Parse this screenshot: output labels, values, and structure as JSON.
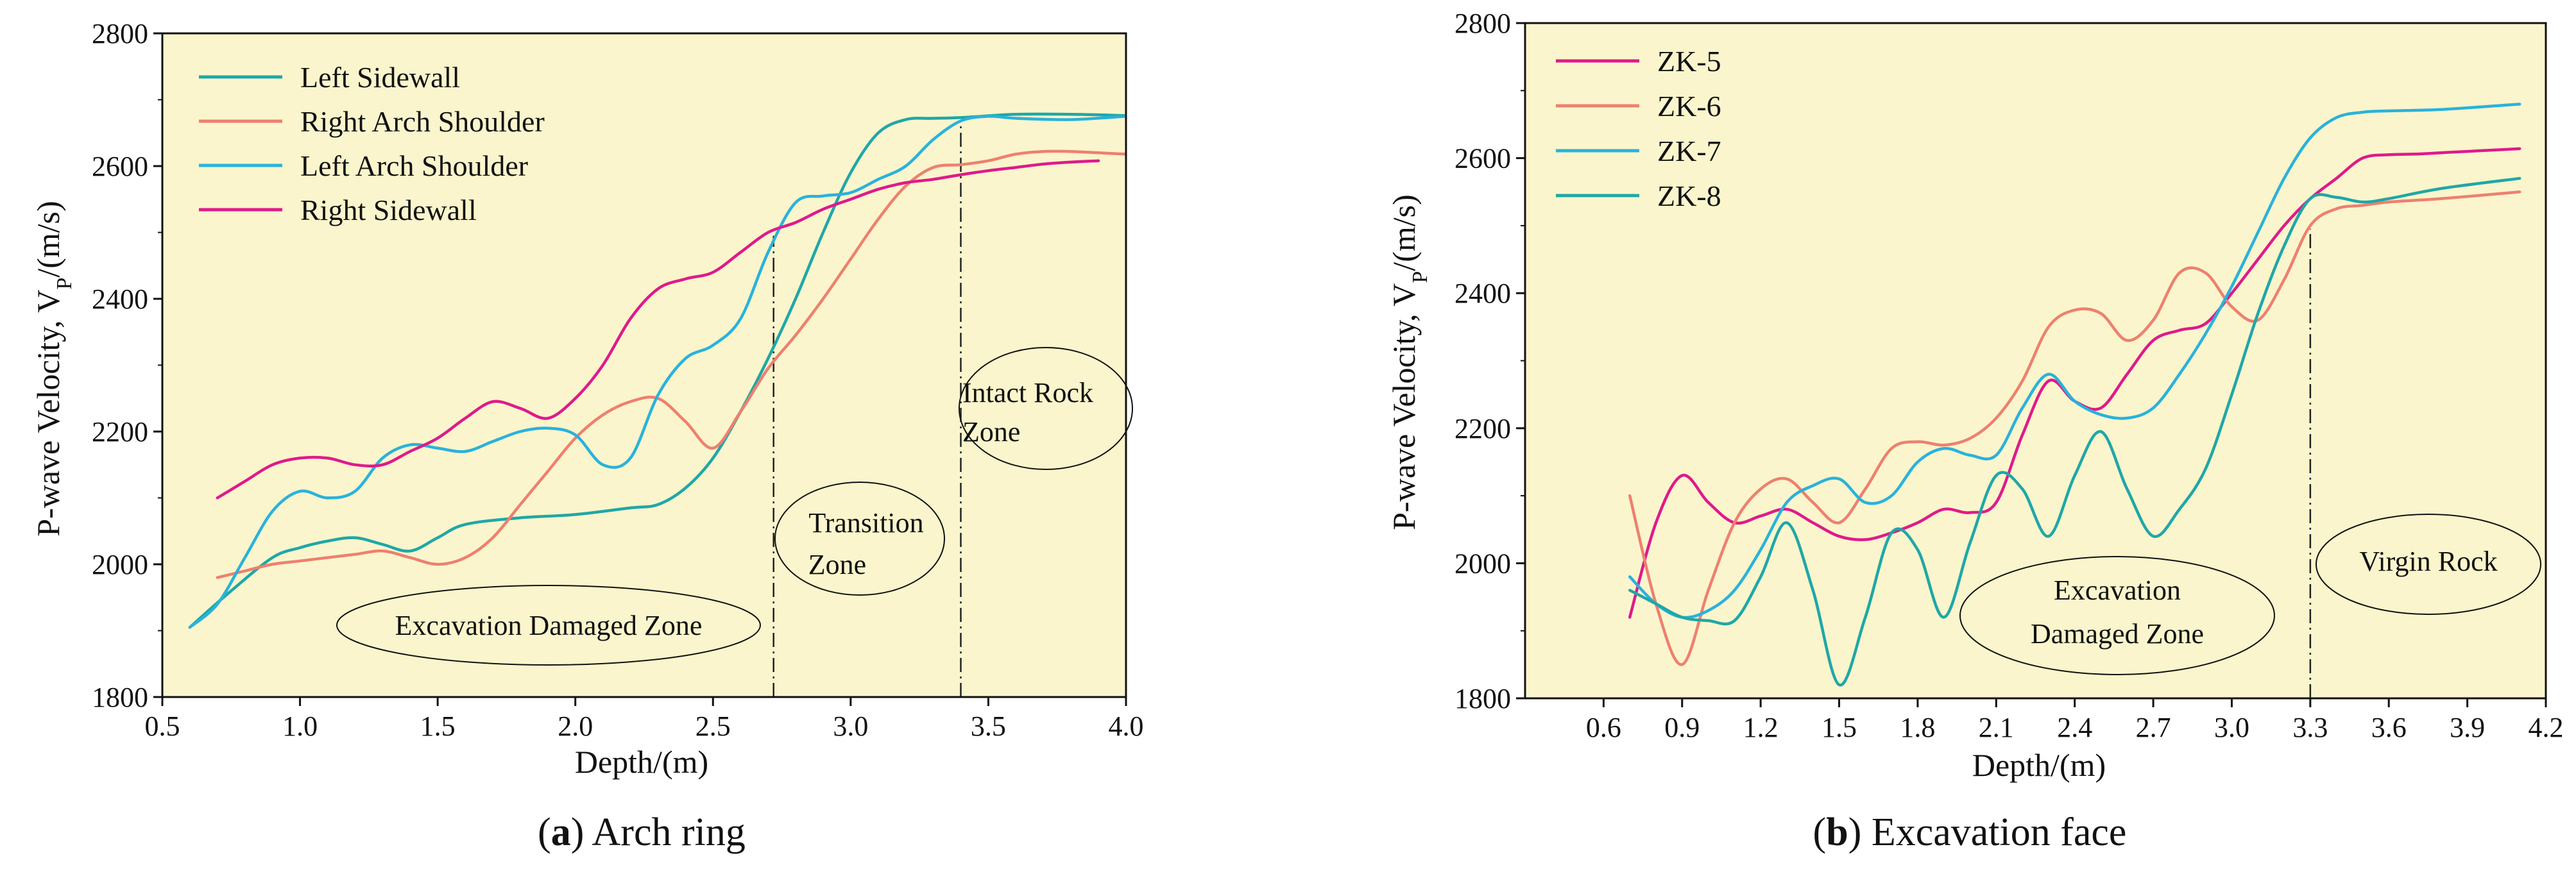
{
  "colors": {
    "plot_bg": "#faf5cc",
    "teal": "#1fa7a7",
    "salmon": "#ee8070",
    "sky": "#29b2dc",
    "magenta": "#df1a8c",
    "axis": "#111111"
  },
  "captions": {
    "a": {
      "letter": "a",
      "text": " Arch ring"
    },
    "b": {
      "letter": "b",
      "text": " Excavation face"
    }
  },
  "panels": [
    {
      "id": "a",
      "ylabel": "P-wave Velocity, V",
      "ylabel_sub": "P",
      "ylabel_unit": "/(m/s)",
      "xlabel": "Depth/(m)",
      "xlim": [
        0.5,
        4.0
      ],
      "ylim": [
        1800,
        2800
      ],
      "xticks": [
        "0.5",
        "1.0",
        "1.5",
        "2.0",
        "2.5",
        "3.0",
        "3.5",
        "4.0"
      ],
      "yticks": [
        "1800",
        "2000",
        "2200",
        "2400",
        "2600",
        "2800"
      ],
      "vlines": [
        2.72,
        3.4
      ],
      "annotations": [
        {
          "lines": [
            "Excavation Damaged Zone"
          ]
        },
        {
          "lines": [
            "Transition",
            "Zone"
          ]
        },
        {
          "lines": [
            "Intact Rock",
            "Zone"
          ]
        }
      ]
    },
    {
      "id": "b",
      "ylabel": "P-wave Velocity, V",
      "ylabel_sub": "P",
      "ylabel_unit": "/(m/s)",
      "xlabel": "Depth/(m)",
      "xlim": [
        0.3,
        4.2
      ],
      "ylim": [
        1800,
        2800
      ],
      "xticks": [
        "0.6",
        "0.9",
        "1.2",
        "1.5",
        "1.8",
        "2.1",
        "2.4",
        "2.7",
        "3.0",
        "3.3",
        "3.6",
        "3.9",
        "4.2"
      ],
      "yticks": [
        "1800",
        "2000",
        "2200",
        "2400",
        "2600",
        "2800"
      ],
      "vlines": [
        3.3
      ],
      "annotations": [
        {
          "lines": [
            "Excavation",
            "Damaged Zone"
          ]
        },
        {
          "lines": [
            "Virgin Rock"
          ]
        }
      ]
    }
  ],
  "chart_data": [
    {
      "type": "line",
      "title": "(a) Arch ring",
      "xlabel": "Depth/(m)",
      "ylabel": "P-wave Velocity, VP/(m/s)",
      "xlim": [
        0.5,
        4.0
      ],
      "ylim": [
        1800,
        2800
      ],
      "legend": "top-left",
      "series": [
        {
          "name": "Left Sidewall",
          "color_key": "teal",
          "x": [
            0.6,
            0.75,
            0.9,
            1.0,
            1.1,
            1.2,
            1.3,
            1.4,
            1.5,
            1.6,
            1.8,
            2.0,
            2.2,
            2.3,
            2.4,
            2.5,
            2.6,
            2.7,
            2.8,
            2.9,
            3.0,
            3.1,
            3.2,
            3.3,
            3.4,
            3.6,
            3.8,
            4.0
          ],
          "y": [
            1905,
            1960,
            2010,
            2025,
            2035,
            2040,
            2030,
            2020,
            2040,
            2060,
            2070,
            2075,
            2085,
            2090,
            2115,
            2160,
            2230,
            2310,
            2400,
            2500,
            2590,
            2650,
            2670,
            2672,
            2673,
            2678,
            2678,
            2676
          ]
        },
        {
          "name": "Right  Arch Shoulder",
          "color_key": "salmon",
          "x": [
            0.7,
            0.8,
            0.9,
            1.0,
            1.1,
            1.2,
            1.3,
            1.4,
            1.5,
            1.6,
            1.7,
            1.8,
            1.9,
            2.0,
            2.1,
            2.2,
            2.3,
            2.4,
            2.5,
            2.6,
            2.7,
            2.8,
            2.9,
            3.0,
            3.1,
            3.2,
            3.3,
            3.4,
            3.5,
            3.6,
            3.7,
            3.8,
            3.9,
            4.0
          ],
          "y": [
            1980,
            1990,
            2000,
            2005,
            2010,
            2015,
            2020,
            2010,
            2000,
            2010,
            2040,
            2090,
            2140,
            2190,
            2225,
            2245,
            2250,
            2215,
            2175,
            2230,
            2295,
            2345,
            2400,
            2460,
            2520,
            2570,
            2598,
            2602,
            2608,
            2618,
            2622,
            2622,
            2620,
            2618
          ]
        },
        {
          "name": "Left  Arch Shoulder",
          "color_key": "sky",
          "x": [
            0.6,
            0.7,
            0.8,
            0.9,
            1.0,
            1.1,
            1.2,
            1.3,
            1.4,
            1.5,
            1.6,
            1.7,
            1.8,
            1.9,
            2.0,
            2.1,
            2.2,
            2.3,
            2.4,
            2.5,
            2.6,
            2.7,
            2.8,
            2.9,
            3.0,
            3.1,
            3.2,
            3.3,
            3.4,
            3.5,
            3.6,
            3.8,
            4.0
          ],
          "y": [
            1905,
            1940,
            2010,
            2080,
            2110,
            2100,
            2110,
            2160,
            2180,
            2175,
            2170,
            2185,
            2200,
            2205,
            2195,
            2150,
            2160,
            2255,
            2310,
            2330,
            2370,
            2470,
            2545,
            2555,
            2560,
            2580,
            2600,
            2640,
            2668,
            2675,
            2672,
            2670,
            2675
          ]
        },
        {
          "name": "Right Sidewall",
          "color_key": "magenta",
          "x": [
            0.7,
            0.8,
            0.9,
            1.0,
            1.1,
            1.2,
            1.3,
            1.4,
            1.5,
            1.6,
            1.7,
            1.8,
            1.9,
            2.0,
            2.1,
            2.2,
            2.3,
            2.4,
            2.5,
            2.6,
            2.7,
            2.8,
            2.9,
            3.0,
            3.1,
            3.2,
            3.3,
            3.4,
            3.5,
            3.6,
            3.7,
            3.8,
            3.9
          ],
          "y": [
            2100,
            2125,
            2150,
            2160,
            2160,
            2150,
            2150,
            2170,
            2190,
            2220,
            2245,
            2235,
            2220,
            2250,
            2300,
            2370,
            2415,
            2430,
            2440,
            2470,
            2500,
            2515,
            2535,
            2550,
            2565,
            2575,
            2580,
            2587,
            2593,
            2598,
            2603,
            2606,
            2608
          ]
        }
      ]
    },
    {
      "type": "line",
      "title": "(b) Excavation face",
      "xlabel": "Depth/(m)",
      "ylabel": "P-wave Velocity, VP/(m/s)",
      "xlim": [
        0.3,
        4.2
      ],
      "ylim": [
        1800,
        2800
      ],
      "legend": "top-left",
      "series": [
        {
          "name": "ZK-5",
          "color_key": "magenta",
          "x": [
            0.7,
            0.8,
            0.9,
            1.0,
            1.1,
            1.2,
            1.3,
            1.4,
            1.5,
            1.6,
            1.7,
            1.8,
            1.9,
            2.0,
            2.1,
            2.2,
            2.3,
            2.4,
            2.5,
            2.6,
            2.7,
            2.8,
            2.9,
            3.0,
            3.1,
            3.2,
            3.3,
            3.4,
            3.5,
            3.6,
            3.7,
            3.8,
            3.9,
            4.0,
            4.1
          ],
          "y": [
            1920,
            2060,
            2130,
            2090,
            2060,
            2070,
            2080,
            2060,
            2040,
            2035,
            2045,
            2060,
            2080,
            2075,
            2090,
            2190,
            2270,
            2240,
            2230,
            2280,
            2330,
            2345,
            2355,
            2400,
            2450,
            2500,
            2540,
            2570,
            2600,
            2605,
            2606,
            2608,
            2610,
            2612,
            2614
          ]
        },
        {
          "name": "ZK-6",
          "color_key": "salmon",
          "x": [
            0.7,
            0.8,
            0.9,
            1.0,
            1.1,
            1.2,
            1.3,
            1.4,
            1.5,
            1.6,
            1.7,
            1.8,
            1.9,
            2.0,
            2.1,
            2.2,
            2.3,
            2.4,
            2.5,
            2.6,
            2.7,
            2.8,
            2.9,
            3.0,
            3.1,
            3.2,
            3.3,
            3.4,
            3.5,
            3.6,
            3.8,
            4.1
          ],
          "y": [
            2100,
            1940,
            1850,
            1960,
            2060,
            2110,
            2125,
            2090,
            2060,
            2110,
            2170,
            2180,
            2175,
            2185,
            2215,
            2270,
            2350,
            2375,
            2370,
            2330,
            2360,
            2430,
            2430,
            2380,
            2360,
            2420,
            2500,
            2525,
            2530,
            2535,
            2540,
            2550
          ]
        },
        {
          "name": "ZK-7",
          "color_key": "sky",
          "x": [
            0.7,
            0.8,
            0.9,
            1.0,
            1.1,
            1.2,
            1.3,
            1.4,
            1.5,
            1.6,
            1.7,
            1.8,
            1.9,
            2.0,
            2.1,
            2.2,
            2.3,
            2.4,
            2.5,
            2.6,
            2.7,
            2.8,
            2.9,
            3.0,
            3.1,
            3.2,
            3.3,
            3.4,
            3.5,
            3.6,
            3.8,
            4.1
          ],
          "y": [
            1980,
            1940,
            1920,
            1930,
            1960,
            2020,
            2090,
            2115,
            2125,
            2090,
            2100,
            2150,
            2170,
            2160,
            2160,
            2230,
            2280,
            2240,
            2220,
            2215,
            2230,
            2280,
            2340,
            2410,
            2490,
            2570,
            2630,
            2660,
            2668,
            2670,
            2672,
            2680
          ]
        },
        {
          "name": "ZK-8",
          "color_key": "teal",
          "x": [
            0.7,
            0.8,
            0.9,
            1.0,
            1.1,
            1.2,
            1.3,
            1.4,
            1.5,
            1.6,
            1.7,
            1.8,
            1.9,
            2.0,
            2.1,
            2.2,
            2.3,
            2.4,
            2.5,
            2.6,
            2.7,
            2.8,
            2.9,
            3.0,
            3.1,
            3.2,
            3.3,
            3.4,
            3.5,
            3.6,
            3.8,
            4.1
          ],
          "y": [
            1960,
            1940,
            1920,
            1915,
            1915,
            1980,
            2060,
            1960,
            1820,
            1920,
            2045,
            2020,
            1920,
            2030,
            2130,
            2110,
            2040,
            2130,
            2195,
            2110,
            2040,
            2080,
            2140,
            2250,
            2370,
            2470,
            2540,
            2542,
            2535,
            2540,
            2555,
            2570
          ]
        }
      ]
    }
  ]
}
